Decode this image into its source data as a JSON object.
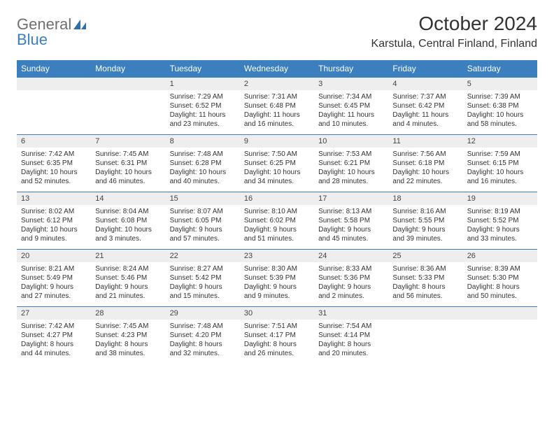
{
  "brand": {
    "name_a": "General",
    "name_b": "Blue"
  },
  "title": "October 2024",
  "location": "Karstula, Central Finland, Finland",
  "colors": {
    "header_bg": "#3b7fbf",
    "header_fg": "#ffffff",
    "daynum_bg": "#eeeeee",
    "border": "#3b7fbf",
    "page_bg": "#ffffff",
    "text": "#333333"
  },
  "dow": [
    "Sunday",
    "Monday",
    "Tuesday",
    "Wednesday",
    "Thursday",
    "Friday",
    "Saturday"
  ],
  "weeks": [
    [
      {},
      {},
      {
        "n": "1",
        "sr": "Sunrise: 7:29 AM",
        "ss": "Sunset: 6:52 PM",
        "d1": "Daylight: 11 hours",
        "d2": "and 23 minutes."
      },
      {
        "n": "2",
        "sr": "Sunrise: 7:31 AM",
        "ss": "Sunset: 6:48 PM",
        "d1": "Daylight: 11 hours",
        "d2": "and 16 minutes."
      },
      {
        "n": "3",
        "sr": "Sunrise: 7:34 AM",
        "ss": "Sunset: 6:45 PM",
        "d1": "Daylight: 11 hours",
        "d2": "and 10 minutes."
      },
      {
        "n": "4",
        "sr": "Sunrise: 7:37 AM",
        "ss": "Sunset: 6:42 PM",
        "d1": "Daylight: 11 hours",
        "d2": "and 4 minutes."
      },
      {
        "n": "5",
        "sr": "Sunrise: 7:39 AM",
        "ss": "Sunset: 6:38 PM",
        "d1": "Daylight: 10 hours",
        "d2": "and 58 minutes."
      }
    ],
    [
      {
        "n": "6",
        "sr": "Sunrise: 7:42 AM",
        "ss": "Sunset: 6:35 PM",
        "d1": "Daylight: 10 hours",
        "d2": "and 52 minutes."
      },
      {
        "n": "7",
        "sr": "Sunrise: 7:45 AM",
        "ss": "Sunset: 6:31 PM",
        "d1": "Daylight: 10 hours",
        "d2": "and 46 minutes."
      },
      {
        "n": "8",
        "sr": "Sunrise: 7:48 AM",
        "ss": "Sunset: 6:28 PM",
        "d1": "Daylight: 10 hours",
        "d2": "and 40 minutes."
      },
      {
        "n": "9",
        "sr": "Sunrise: 7:50 AM",
        "ss": "Sunset: 6:25 PM",
        "d1": "Daylight: 10 hours",
        "d2": "and 34 minutes."
      },
      {
        "n": "10",
        "sr": "Sunrise: 7:53 AM",
        "ss": "Sunset: 6:21 PM",
        "d1": "Daylight: 10 hours",
        "d2": "and 28 minutes."
      },
      {
        "n": "11",
        "sr": "Sunrise: 7:56 AM",
        "ss": "Sunset: 6:18 PM",
        "d1": "Daylight: 10 hours",
        "d2": "and 22 minutes."
      },
      {
        "n": "12",
        "sr": "Sunrise: 7:59 AM",
        "ss": "Sunset: 6:15 PM",
        "d1": "Daylight: 10 hours",
        "d2": "and 16 minutes."
      }
    ],
    [
      {
        "n": "13",
        "sr": "Sunrise: 8:02 AM",
        "ss": "Sunset: 6:12 PM",
        "d1": "Daylight: 10 hours",
        "d2": "and 9 minutes."
      },
      {
        "n": "14",
        "sr": "Sunrise: 8:04 AM",
        "ss": "Sunset: 6:08 PM",
        "d1": "Daylight: 10 hours",
        "d2": "and 3 minutes."
      },
      {
        "n": "15",
        "sr": "Sunrise: 8:07 AM",
        "ss": "Sunset: 6:05 PM",
        "d1": "Daylight: 9 hours",
        "d2": "and 57 minutes."
      },
      {
        "n": "16",
        "sr": "Sunrise: 8:10 AM",
        "ss": "Sunset: 6:02 PM",
        "d1": "Daylight: 9 hours",
        "d2": "and 51 minutes."
      },
      {
        "n": "17",
        "sr": "Sunrise: 8:13 AM",
        "ss": "Sunset: 5:58 PM",
        "d1": "Daylight: 9 hours",
        "d2": "and 45 minutes."
      },
      {
        "n": "18",
        "sr": "Sunrise: 8:16 AM",
        "ss": "Sunset: 5:55 PM",
        "d1": "Daylight: 9 hours",
        "d2": "and 39 minutes."
      },
      {
        "n": "19",
        "sr": "Sunrise: 8:19 AM",
        "ss": "Sunset: 5:52 PM",
        "d1": "Daylight: 9 hours",
        "d2": "and 33 minutes."
      }
    ],
    [
      {
        "n": "20",
        "sr": "Sunrise: 8:21 AM",
        "ss": "Sunset: 5:49 PM",
        "d1": "Daylight: 9 hours",
        "d2": "and 27 minutes."
      },
      {
        "n": "21",
        "sr": "Sunrise: 8:24 AM",
        "ss": "Sunset: 5:46 PM",
        "d1": "Daylight: 9 hours",
        "d2": "and 21 minutes."
      },
      {
        "n": "22",
        "sr": "Sunrise: 8:27 AM",
        "ss": "Sunset: 5:42 PM",
        "d1": "Daylight: 9 hours",
        "d2": "and 15 minutes."
      },
      {
        "n": "23",
        "sr": "Sunrise: 8:30 AM",
        "ss": "Sunset: 5:39 PM",
        "d1": "Daylight: 9 hours",
        "d2": "and 9 minutes."
      },
      {
        "n": "24",
        "sr": "Sunrise: 8:33 AM",
        "ss": "Sunset: 5:36 PM",
        "d1": "Daylight: 9 hours",
        "d2": "and 2 minutes."
      },
      {
        "n": "25",
        "sr": "Sunrise: 8:36 AM",
        "ss": "Sunset: 5:33 PM",
        "d1": "Daylight: 8 hours",
        "d2": "and 56 minutes."
      },
      {
        "n": "26",
        "sr": "Sunrise: 8:39 AM",
        "ss": "Sunset: 5:30 PM",
        "d1": "Daylight: 8 hours",
        "d2": "and 50 minutes."
      }
    ],
    [
      {
        "n": "27",
        "sr": "Sunrise: 7:42 AM",
        "ss": "Sunset: 4:27 PM",
        "d1": "Daylight: 8 hours",
        "d2": "and 44 minutes."
      },
      {
        "n": "28",
        "sr": "Sunrise: 7:45 AM",
        "ss": "Sunset: 4:23 PM",
        "d1": "Daylight: 8 hours",
        "d2": "and 38 minutes."
      },
      {
        "n": "29",
        "sr": "Sunrise: 7:48 AM",
        "ss": "Sunset: 4:20 PM",
        "d1": "Daylight: 8 hours",
        "d2": "and 32 minutes."
      },
      {
        "n": "30",
        "sr": "Sunrise: 7:51 AM",
        "ss": "Sunset: 4:17 PM",
        "d1": "Daylight: 8 hours",
        "d2": "and 26 minutes."
      },
      {
        "n": "31",
        "sr": "Sunrise: 7:54 AM",
        "ss": "Sunset: 4:14 PM",
        "d1": "Daylight: 8 hours",
        "d2": "and 20 minutes."
      },
      {},
      {}
    ]
  ]
}
